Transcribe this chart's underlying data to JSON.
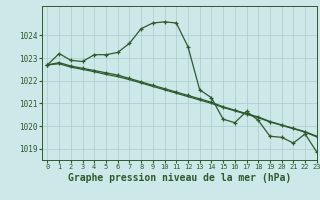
{
  "title": "Graphe pression niveau de la mer (hPa)",
  "background_color": "#cce8e8",
  "grid_color": "#aacccc",
  "line_color": "#2d5a2d",
  "xlim": [
    -0.5,
    23
  ],
  "ylim": [
    1018.5,
    1025.3
  ],
  "yticks": [
    1019,
    1020,
    1021,
    1022,
    1023,
    1024
  ],
  "xticks": [
    0,
    1,
    2,
    3,
    4,
    5,
    6,
    7,
    8,
    9,
    10,
    11,
    12,
    13,
    14,
    15,
    16,
    17,
    18,
    19,
    20,
    21,
    22,
    23
  ],
  "series1": [
    1022.7,
    1023.2,
    1022.9,
    1022.85,
    1023.15,
    1023.15,
    1023.25,
    1023.65,
    1024.3,
    1024.55,
    1024.6,
    1024.55,
    1023.5,
    1021.6,
    1021.25,
    1020.3,
    1020.15,
    1020.65,
    1020.25,
    1019.55,
    1019.5,
    1019.25,
    1019.65,
    1018.85
  ],
  "series2": [
    1022.7,
    1022.8,
    1022.65,
    1022.55,
    1022.45,
    1022.35,
    1022.25,
    1022.1,
    1021.95,
    1021.8,
    1021.65,
    1021.5,
    1021.35,
    1021.2,
    1021.05,
    1020.85,
    1020.7,
    1020.55,
    1020.4,
    1020.2,
    1020.05,
    1019.9,
    1019.75,
    1019.55
  ],
  "series3": [
    1022.7,
    1022.75,
    1022.6,
    1022.5,
    1022.4,
    1022.28,
    1022.18,
    1022.05,
    1021.9,
    1021.75,
    1021.6,
    1021.45,
    1021.3,
    1021.15,
    1021.0,
    1020.82,
    1020.67,
    1020.52,
    1020.37,
    1020.18,
    1020.03,
    1019.88,
    1019.73,
    1019.52
  ],
  "title_fontsize": 7,
  "tick_fontsize": 5.5
}
